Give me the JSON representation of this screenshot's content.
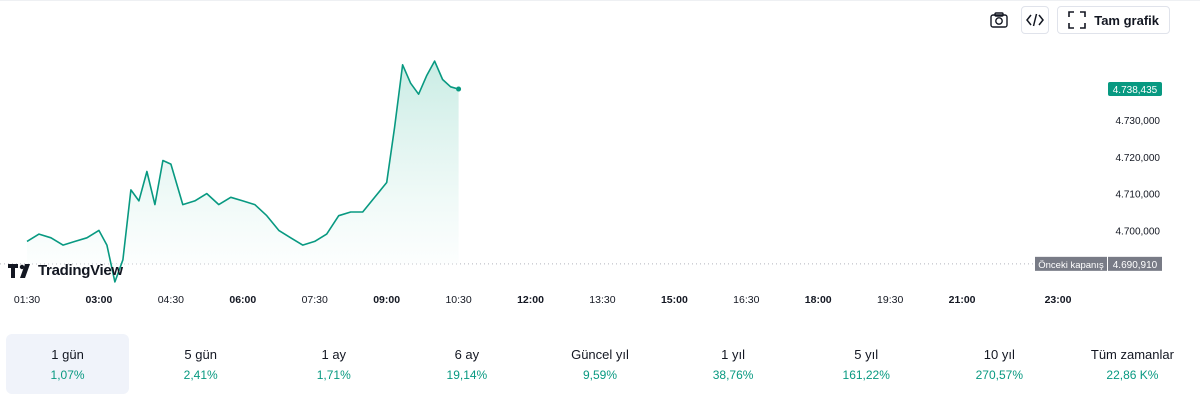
{
  "toolbar": {
    "camera_icon": "camera-icon",
    "embed_icon": "code-icon",
    "fullscreen_icon": "fullscreen-icon",
    "fullscreen_label": "Tam grafik"
  },
  "logo": {
    "text": "TradingView"
  },
  "colors": {
    "line": "#089981",
    "area_top": "#c9ece4",
    "area_bottom": "#ffffff",
    "prev_close": "#b2b5be",
    "price_tag": "#089981",
    "prev_tag": "#787b86"
  },
  "chart_data": {
    "type": "area",
    "x_ticks": [
      "01:30",
      "03:00",
      "04:30",
      "06:00",
      "07:30",
      "09:00",
      "10:30",
      "12:00",
      "13:30",
      "15:00",
      "16:30",
      "18:00",
      "19:30",
      "21:00",
      "23:00"
    ],
    "x_ticks_bold": [
      "03:00",
      "06:00",
      "09:00",
      "12:00",
      "15:00",
      "18:00",
      "21:00",
      "23:00"
    ],
    "y_ticks": [
      "4.730,000",
      "4.720,000",
      "4.710,000",
      "4.700,000"
    ],
    "y_tick_values": [
      4730,
      4720,
      4710,
      4700
    ],
    "ylim": [
      4680,
      4752
    ],
    "x_range": [
      "01:30",
      "23:00"
    ],
    "series": [
      {
        "x": [
          "01:30",
          "01:45",
          "02:00",
          "02:15",
          "02:30",
          "02:45",
          "03:00",
          "03:10",
          "03:20",
          "03:30",
          "03:40",
          "03:50",
          "04:00",
          "04:10",
          "04:20",
          "04:30",
          "04:45",
          "05:00",
          "05:15",
          "05:30",
          "05:45",
          "06:00",
          "06:15",
          "06:30",
          "06:45",
          "07:00",
          "07:15",
          "07:30",
          "07:45",
          "08:00",
          "08:15",
          "08:30",
          "08:45",
          "09:00",
          "09:10",
          "09:20",
          "09:30",
          "09:40",
          "09:50",
          "10:00",
          "10:10",
          "10:20",
          "10:30"
        ],
        "values": [
          4697,
          4699,
          4698,
          4696,
          4697,
          4698,
          4700,
          4696,
          4686,
          4692,
          4711,
          4708,
          4716,
          4707,
          4719,
          4718,
          4707,
          4708,
          4710,
          4707,
          4709,
          4708,
          4707,
          4704,
          4700,
          4698,
          4696,
          4697,
          4699,
          4704,
          4705,
          4705,
          4709,
          4713,
          4728,
          4745,
          4740,
          4737,
          4742,
          4746,
          4741,
          4739,
          4738.4
        ]
      }
    ],
    "last_price_label": "4.738,435",
    "prev_close_value": 4690.91,
    "prev_close_text": "Önceki kapanış",
    "prev_close_label": "4.690,910",
    "grid": false
  },
  "periods": [
    {
      "label": "1 gün",
      "value": "1,07%",
      "active": true
    },
    {
      "label": "5 gün",
      "value": "2,41%"
    },
    {
      "label": "1 ay",
      "value": "1,71%"
    },
    {
      "label": "6 ay",
      "value": "19,14%"
    },
    {
      "label": "Güncel yıl",
      "value": "9,59%"
    },
    {
      "label": "1 yıl",
      "value": "38,76%"
    },
    {
      "label": "5 yıl",
      "value": "161,22%"
    },
    {
      "label": "10 yıl",
      "value": "270,57%"
    },
    {
      "label": "Tüm zamanlar",
      "value": "22,86 K%"
    }
  ]
}
